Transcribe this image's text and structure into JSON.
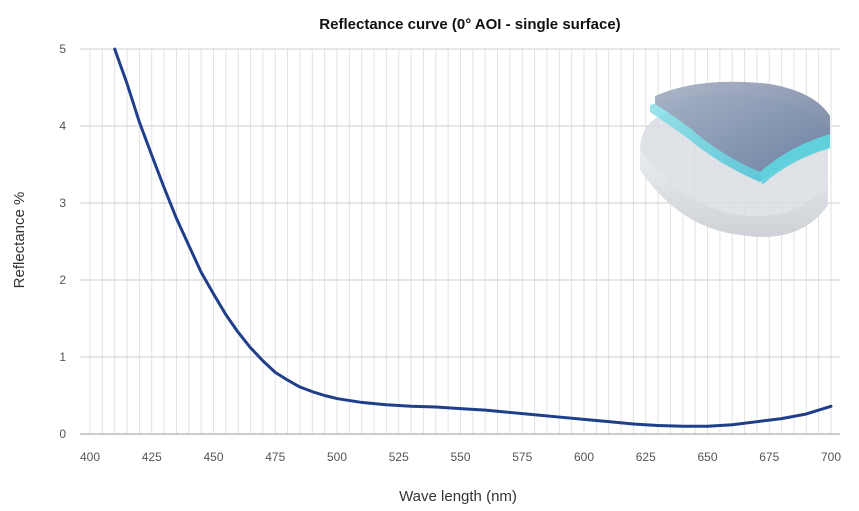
{
  "chart_data": {
    "type": "line",
    "title": "Reflectance curve (0° AOI - single surface)",
    "xlabel": "Wave length (nm)",
    "ylabel": "Reflectance %",
    "xlim": [
      400,
      700
    ],
    "ylim": [
      0,
      5
    ],
    "x_ticks": [
      400,
      425,
      450,
      475,
      500,
      525,
      550,
      575,
      600,
      625,
      650,
      675,
      700
    ],
    "y_ticks": [
      0,
      1,
      2,
      3,
      4,
      5
    ],
    "x_minor_step": 5,
    "grid": true,
    "legend": "none",
    "series": [
      {
        "color": "#1f3f8a",
        "x": [
          410,
          415,
          420,
          425,
          430,
          435,
          440,
          445,
          450,
          455,
          460,
          465,
          470,
          475,
          480,
          485,
          490,
          495,
          500,
          510,
          520,
          530,
          540,
          550,
          560,
          570,
          580,
          590,
          600,
          610,
          620,
          630,
          640,
          650,
          660,
          670,
          680,
          690,
          700
        ],
        "y": [
          5.0,
          4.55,
          4.05,
          3.62,
          3.2,
          2.8,
          2.45,
          2.1,
          1.82,
          1.55,
          1.32,
          1.12,
          0.95,
          0.8,
          0.7,
          0.61,
          0.55,
          0.5,
          0.46,
          0.41,
          0.38,
          0.36,
          0.35,
          0.33,
          0.31,
          0.28,
          0.25,
          0.22,
          0.19,
          0.16,
          0.13,
          0.11,
          0.1,
          0.1,
          0.12,
          0.16,
          0.2,
          0.26,
          0.36
        ]
      }
    ]
  },
  "decor": {
    "illustration": "coated-lens-icon"
  }
}
